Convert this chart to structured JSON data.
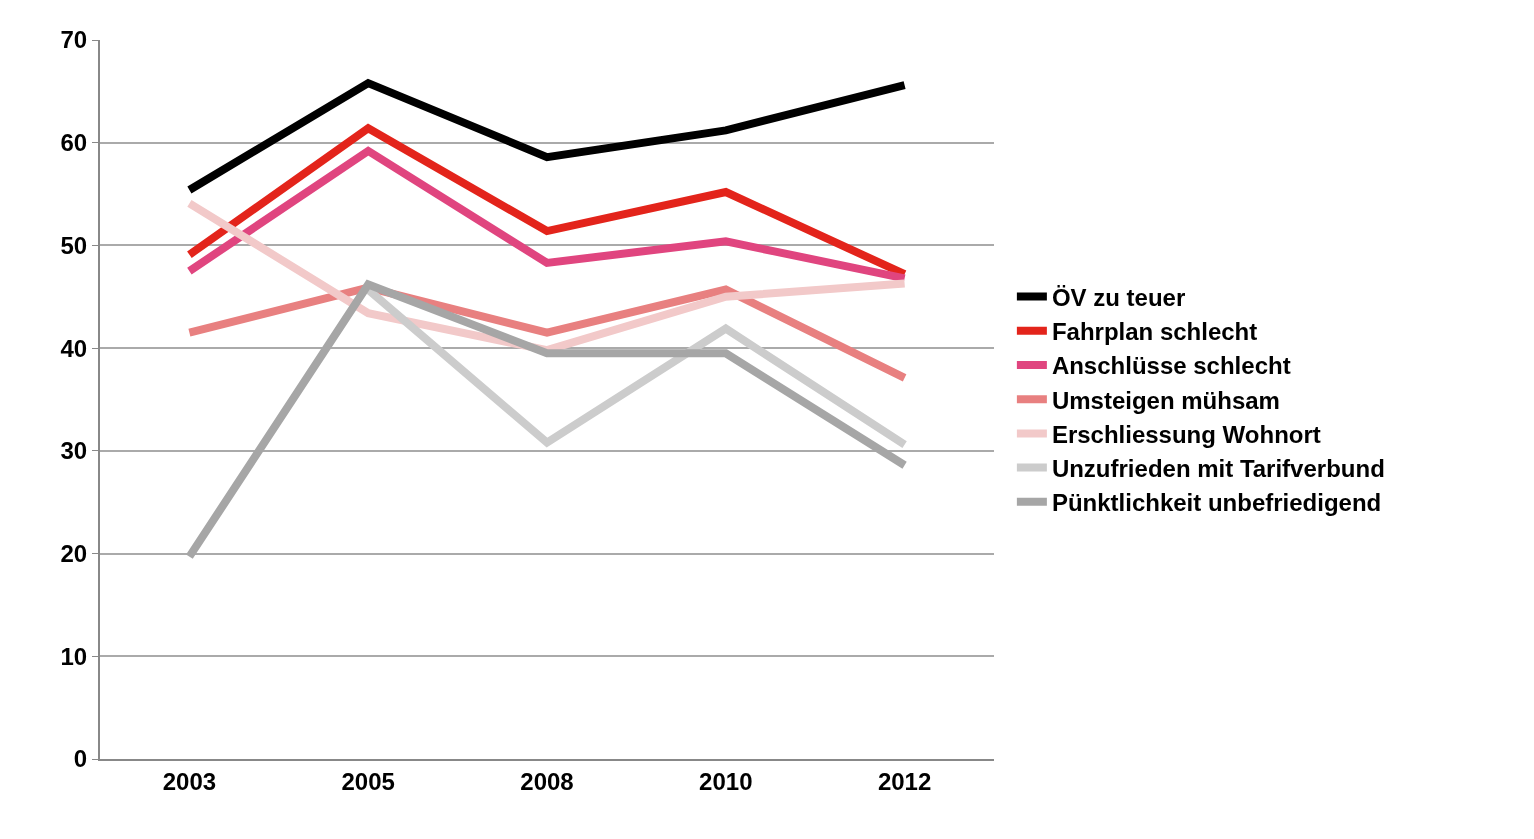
{
  "chart_data": {
    "type": "line",
    "categories": [
      "2003",
      "2005",
      "2008",
      "2010",
      "2012"
    ],
    "ylim": [
      0,
      70
    ],
    "yticks": [
      0,
      10,
      20,
      30,
      40,
      50,
      60,
      70
    ],
    "grid": "y",
    "legend": "right",
    "marker": "none",
    "line_style": "solid",
    "series": [
      {
        "name": "ÖV zu teuer",
        "color": "#000000",
        "values": [
          55.4,
          65.8,
          58.6,
          61.2,
          65.6
        ]
      },
      {
        "name": "Fahrplan schlecht",
        "color": "#e3241b",
        "values": [
          49.1,
          61.4,
          51.4,
          55.2,
          47.2
        ]
      },
      {
        "name": "Anschlüsse schlecht",
        "color": "#e0457f",
        "values": [
          47.5,
          59.2,
          48.3,
          50.4,
          46.8
        ]
      },
      {
        "name": "Umsteigen mühsam",
        "color": "#e88080",
        "values": [
          41.5,
          45.9,
          41.5,
          45.7,
          37.1
        ]
      },
      {
        "name": "Erschliessung Wohnort",
        "color": "#f2c9c9",
        "values": [
          54.1,
          43.4,
          39.8,
          45,
          46.3
        ]
      },
      {
        "name": "Unzufrieden mit Tarifverbund",
        "color": "#cccccc",
        "values": [
          null,
          45.7,
          30.8,
          41.9,
          30.6
        ]
      },
      {
        "name": "Pünktlichkeit unbefriedigend",
        "color": "#a6a6a6",
        "values": [
          19.7,
          46.2,
          39.5,
          39.5,
          28.6
        ]
      }
    ]
  }
}
